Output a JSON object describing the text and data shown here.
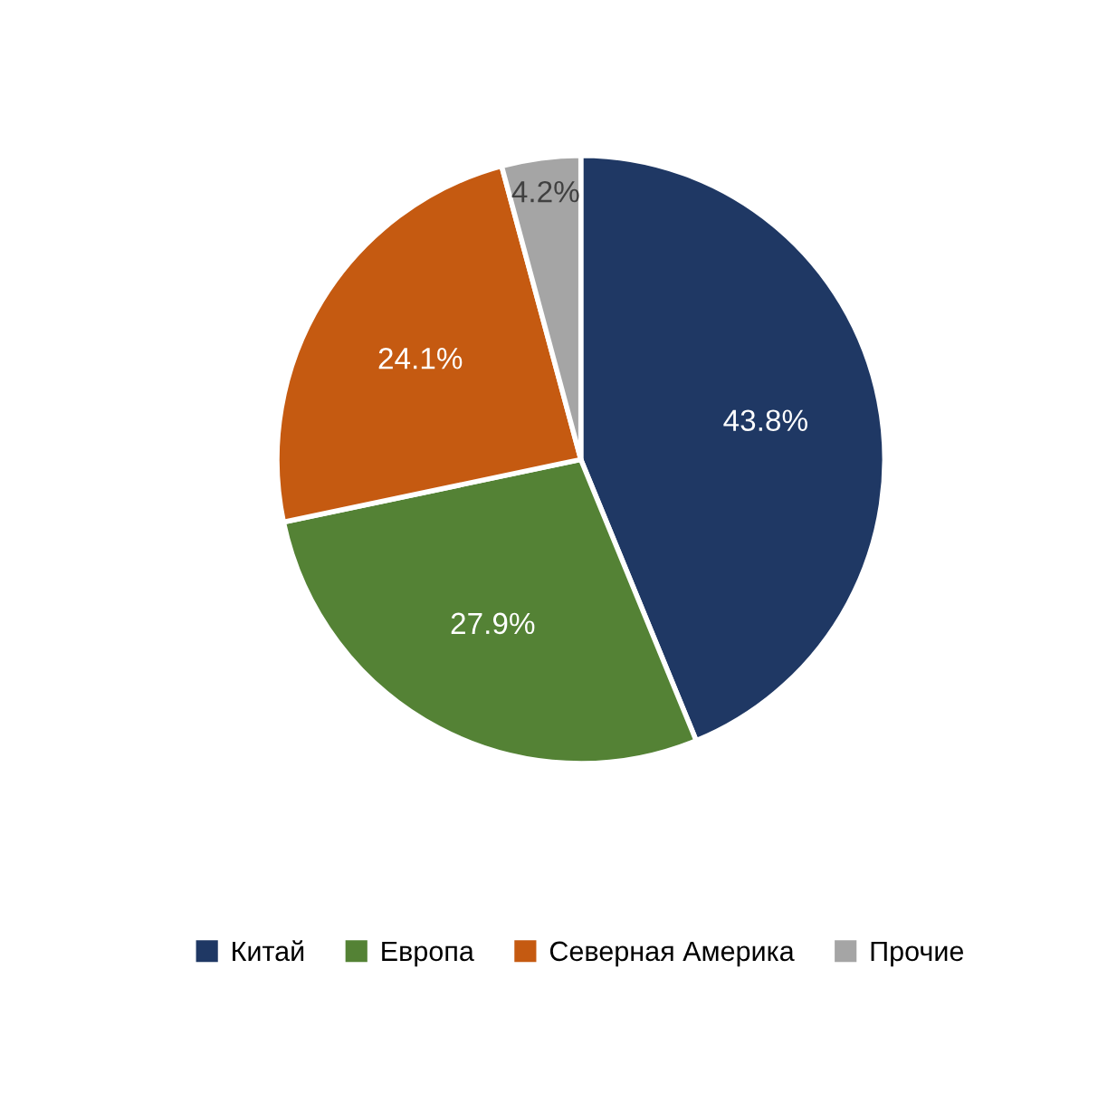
{
  "chart_data": {
    "type": "pie",
    "categories": [
      "Китай",
      "Европа",
      "Северная Америка",
      "Прочие"
    ],
    "values": [
      43.8,
      27.9,
      24.1,
      4.2
    ],
    "colors": [
      "#1f3864",
      "#548235",
      "#c55a11",
      "#a5a5a5"
    ],
    "value_labels": [
      "43.8%",
      "27.9%",
      "24.1%",
      "4.2%"
    ],
    "legend": "bottom"
  }
}
